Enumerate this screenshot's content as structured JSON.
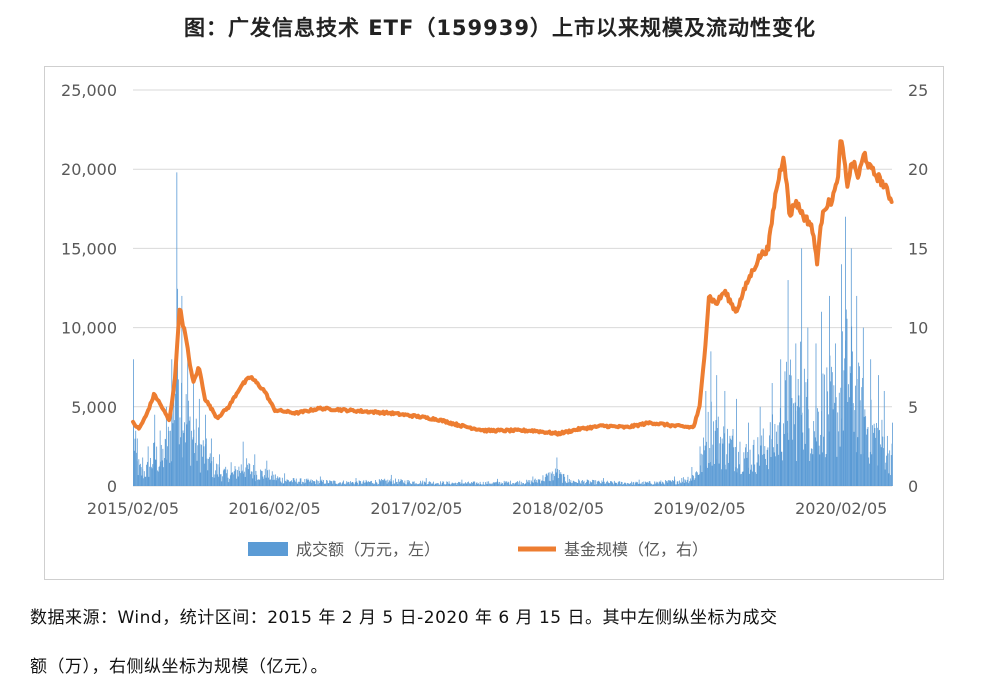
{
  "title": "图：广发信息技术 ETF（159939）上市以来规模及流动性变化",
  "footnote": {
    "line1": "数据来源：Wind，统计区间：2015 年 2 月 5 日-2020 年 6 月 15 日。其中左侧纵坐标为成交",
    "line2": "额（万），右侧纵坐标为规模（亿元）。"
  },
  "colors": {
    "volume": "#5b9bd5",
    "scale": "#ed7d31",
    "grid": "#d9d9d9",
    "axis_text": "#595959"
  },
  "chart_data": {
    "type": "bar+line",
    "x_start": "2015-02-05",
    "x_end": "2020-06-15",
    "x_tick_labels": [
      "2015/02/05",
      "2016/02/05",
      "2017/02/05",
      "2018/02/05",
      "2019/02/05",
      "2020/02/05"
    ],
    "left_axis": {
      "ylim": [
        0,
        25000
      ],
      "ticks": [
        "0",
        "5,000",
        "10,000",
        "15,000",
        "20,000",
        "25,000"
      ]
    },
    "right_axis": {
      "ylim": [
        0,
        25
      ],
      "ticks": [
        "0",
        "5",
        "10",
        "15",
        "20",
        "25"
      ]
    },
    "grid": true,
    "legend": {
      "placement": "bottom",
      "entries": [
        "成交额（万元，左）",
        "基金规模（亿，右）"
      ]
    },
    "series": [
      {
        "name": "成交额（万元，左）",
        "axis": "left",
        "type": "bar",
        "points": [
          [
            "2015-02-05",
            8000
          ],
          [
            "2015-02-15",
            3000
          ],
          [
            "2015-03-01",
            1800
          ],
          [
            "2015-03-15",
            2500
          ],
          [
            "2015-04-01",
            4500
          ],
          [
            "2015-04-15",
            3500
          ],
          [
            "2015-05-01",
            5000
          ],
          [
            "2015-05-15",
            8000
          ],
          [
            "2015-05-28",
            19800
          ],
          [
            "2015-06-10",
            12000
          ],
          [
            "2015-06-25",
            9000
          ],
          [
            "2015-07-10",
            7000
          ],
          [
            "2015-07-25",
            5500
          ],
          [
            "2015-08-10",
            4500
          ],
          [
            "2015-08-25",
            3000
          ],
          [
            "2015-09-15",
            2000
          ],
          [
            "2015-10-15",
            1500
          ],
          [
            "2015-11-15",
            2800
          ],
          [
            "2015-12-15",
            2000
          ],
          [
            "2016-01-15",
            1600
          ],
          [
            "2016-03-01",
            800
          ],
          [
            "2016-06-01",
            600
          ],
          [
            "2016-09-01",
            500
          ],
          [
            "2016-12-01",
            700
          ],
          [
            "2017-03-01",
            500
          ],
          [
            "2017-06-01",
            400
          ],
          [
            "2017-09-01",
            450
          ],
          [
            "2017-12-01",
            600
          ],
          [
            "2018-02-01",
            1800
          ],
          [
            "2018-03-01",
            700
          ],
          [
            "2018-06-01",
            500
          ],
          [
            "2018-09-01",
            400
          ],
          [
            "2018-12-01",
            600
          ],
          [
            "2019-01-15",
            1200
          ],
          [
            "2019-02-05",
            2500
          ],
          [
            "2019-02-20",
            6000
          ],
          [
            "2019-03-05",
            8500
          ],
          [
            "2019-03-20",
            7000
          ],
          [
            "2019-04-10",
            6000
          ],
          [
            "2019-05-10",
            5500
          ],
          [
            "2019-06-10",
            4000
          ],
          [
            "2019-07-10",
            5000
          ],
          [
            "2019-08-10",
            6500
          ],
          [
            "2019-09-01",
            8000
          ],
          [
            "2019-09-20",
            13000
          ],
          [
            "2019-10-10",
            9000
          ],
          [
            "2019-10-25",
            15000
          ],
          [
            "2019-11-10",
            10000
          ],
          [
            "2019-12-01",
            9000
          ],
          [
            "2019-12-15",
            11000
          ],
          [
            "2020-01-05",
            12000
          ],
          [
            "2020-01-20",
            9000
          ],
          [
            "2020-02-05",
            14000
          ],
          [
            "2020-02-15",
            17000
          ],
          [
            "2020-03-01",
            15000
          ],
          [
            "2020-03-15",
            12000
          ],
          [
            "2020-04-01",
            10000
          ],
          [
            "2020-04-20",
            8000
          ],
          [
            "2020-05-10",
            7000
          ],
          [
            "2020-05-25",
            6000
          ],
          [
            "2020-06-15",
            4000
          ]
        ]
      },
      {
        "name": "基金规模（亿，右）",
        "axis": "right",
        "type": "line",
        "points": [
          [
            "2015-02-05",
            4.0
          ],
          [
            "2015-02-20",
            3.6
          ],
          [
            "2015-03-10",
            4.4
          ],
          [
            "2015-04-01",
            5.8
          ],
          [
            "2015-04-20",
            5.0
          ],
          [
            "2015-05-10",
            4.1
          ],
          [
            "2015-05-25",
            7.0
          ],
          [
            "2015-06-05",
            11.3
          ],
          [
            "2015-06-20",
            9.5
          ],
          [
            "2015-07-10",
            6.5
          ],
          [
            "2015-07-25",
            7.5
          ],
          [
            "2015-08-10",
            5.5
          ],
          [
            "2015-09-10",
            4.3
          ],
          [
            "2015-10-10",
            5.0
          ],
          [
            "2015-11-10",
            6.3
          ],
          [
            "2015-12-05",
            6.9
          ],
          [
            "2016-01-10",
            6.0
          ],
          [
            "2016-02-05",
            4.8
          ],
          [
            "2016-04-01",
            4.6
          ],
          [
            "2016-06-01",
            4.9
          ],
          [
            "2016-08-01",
            4.8
          ],
          [
            "2016-10-01",
            4.7
          ],
          [
            "2016-12-01",
            4.6
          ],
          [
            "2017-02-05",
            4.4
          ],
          [
            "2017-04-01",
            4.2
          ],
          [
            "2017-06-01",
            3.8
          ],
          [
            "2017-08-01",
            3.5
          ],
          [
            "2017-10-01",
            3.5
          ],
          [
            "2017-12-01",
            3.5
          ],
          [
            "2018-02-05",
            3.3
          ],
          [
            "2018-04-01",
            3.6
          ],
          [
            "2018-06-01",
            3.8
          ],
          [
            "2018-08-01",
            3.7
          ],
          [
            "2018-10-01",
            4.0
          ],
          [
            "2018-12-01",
            3.8
          ],
          [
            "2019-01-20",
            3.7
          ],
          [
            "2019-02-05",
            5.0
          ],
          [
            "2019-02-20",
            9.0
          ],
          [
            "2019-03-01",
            12.0
          ],
          [
            "2019-03-20",
            11.5
          ],
          [
            "2019-04-10",
            12.3
          ],
          [
            "2019-05-10",
            11.0
          ],
          [
            "2019-06-10",
            13.0
          ],
          [
            "2019-07-10",
            14.5
          ],
          [
            "2019-08-01",
            15.0
          ],
          [
            "2019-08-20",
            18.5
          ],
          [
            "2019-09-10",
            21.0
          ],
          [
            "2019-09-25",
            17.0
          ],
          [
            "2019-10-10",
            18.0
          ],
          [
            "2019-11-01",
            17.0
          ],
          [
            "2019-11-20",
            16.5
          ],
          [
            "2019-12-05",
            14.2
          ],
          [
            "2019-12-20",
            17.5
          ],
          [
            "2020-01-10",
            18.0
          ],
          [
            "2020-01-25",
            19.0
          ],
          [
            "2020-02-05",
            22.0
          ],
          [
            "2020-02-20",
            19.0
          ],
          [
            "2020-03-05",
            20.5
          ],
          [
            "2020-03-20",
            19.5
          ],
          [
            "2020-04-05",
            21.0
          ],
          [
            "2020-04-20",
            20.0
          ],
          [
            "2020-05-10",
            19.5
          ],
          [
            "2020-05-25",
            19.0
          ],
          [
            "2020-06-15",
            18.0
          ]
        ]
      }
    ]
  }
}
